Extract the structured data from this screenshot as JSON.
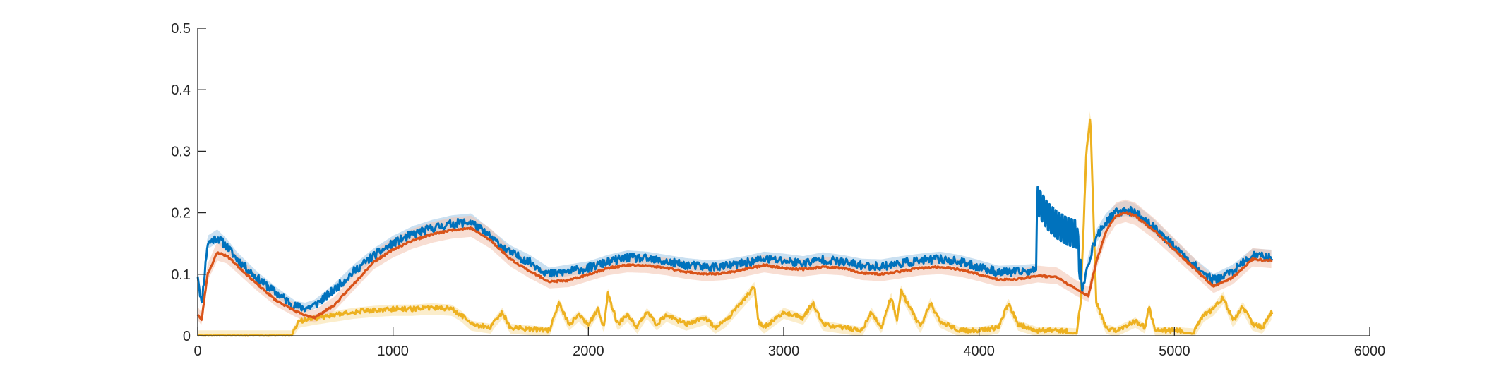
{
  "chart_data": {
    "type": "line",
    "title": "",
    "xlabel": "",
    "ylabel": "",
    "xlim": [
      0,
      6000
    ],
    "ylim": [
      0,
      0.5
    ],
    "xticks": [
      0,
      1000,
      2000,
      3000,
      4000,
      5000,
      6000
    ],
    "yticks": [
      0,
      0.1,
      0.2,
      0.3,
      0.4,
      0.5
    ],
    "xtick_labels": [
      "0",
      "1000",
      "2000",
      "3000",
      "4000",
      "5000",
      "6000"
    ],
    "ytick_labels": [
      "0",
      "0.1",
      "0.2",
      "0.3",
      "0.4",
      "0.5"
    ],
    "grid": false,
    "legend": "none",
    "series": [
      {
        "color": "#0072BD",
        "band_color": "#9FC7E6",
        "x": [
          0,
          20,
          50,
          100,
          150,
          200,
          300,
          400,
          500,
          550,
          600,
          700,
          800,
          900,
          1000,
          1100,
          1200,
          1300,
          1400,
          1500,
          1600,
          1700,
          1800,
          1900,
          2000,
          2100,
          2200,
          2300,
          2400,
          2500,
          2600,
          2700,
          2800,
          2900,
          3000,
          3100,
          3200,
          3300,
          3400,
          3500,
          3600,
          3700,
          3800,
          3900,
          4000,
          4100,
          4200,
          4290,
          4300,
          4350,
          4400,
          4450,
          4500,
          4530,
          4560,
          4600,
          4650,
          4700,
          4750,
          4800,
          4900,
          5000,
          5100,
          5200,
          5300,
          5400,
          5500
        ],
        "values": [
          0.1,
          0.05,
          0.15,
          0.16,
          0.145,
          0.125,
          0.095,
          0.07,
          0.048,
          0.045,
          0.05,
          0.075,
          0.105,
          0.13,
          0.15,
          0.165,
          0.175,
          0.182,
          0.185,
          0.16,
          0.135,
          0.12,
          0.1,
          0.105,
          0.11,
          0.12,
          0.127,
          0.125,
          0.12,
          0.115,
          0.112,
          0.113,
          0.118,
          0.125,
          0.122,
          0.118,
          0.124,
          0.12,
          0.114,
          0.113,
          0.118,
          0.122,
          0.125,
          0.12,
          0.112,
          0.103,
          0.104,
          0.106,
          0.22,
          0.195,
          0.18,
          0.17,
          0.165,
          0.07,
          0.12,
          0.16,
          0.185,
          0.2,
          0.205,
          0.2,
          0.175,
          0.145,
          0.115,
          0.09,
          0.105,
          0.13,
          0.128
        ],
        "noise_seed": 11,
        "noise_amp": 0.007,
        "band_halfwidth": 0.012
      },
      {
        "color": "#D95319",
        "band_color": "#F2C3AE",
        "x": [
          0,
          20,
          50,
          100,
          150,
          200,
          300,
          400,
          500,
          550,
          600,
          700,
          800,
          900,
          1000,
          1100,
          1200,
          1300,
          1400,
          1500,
          1600,
          1700,
          1800,
          1900,
          2000,
          2100,
          2200,
          2300,
          2400,
          2500,
          2600,
          2700,
          2800,
          2900,
          3000,
          3100,
          3200,
          3300,
          3400,
          3500,
          3600,
          3700,
          3800,
          3900,
          4000,
          4100,
          4200,
          4300,
          4400,
          4500,
          4560,
          4600,
          4650,
          4700,
          4750,
          4800,
          4900,
          5000,
          5100,
          5200,
          5300,
          5400,
          5500
        ],
        "values": [
          0.035,
          0.025,
          0.1,
          0.135,
          0.13,
          0.115,
          0.085,
          0.058,
          0.04,
          0.033,
          0.03,
          0.05,
          0.085,
          0.12,
          0.14,
          0.155,
          0.165,
          0.172,
          0.175,
          0.155,
          0.125,
          0.105,
          0.088,
          0.09,
          0.1,
          0.11,
          0.115,
          0.114,
          0.11,
          0.104,
          0.1,
          0.102,
          0.108,
          0.115,
          0.11,
          0.108,
          0.112,
          0.11,
          0.102,
          0.1,
          0.105,
          0.11,
          0.112,
          0.108,
          0.1,
          0.091,
          0.092,
          0.098,
          0.095,
          0.075,
          0.065,
          0.12,
          0.17,
          0.195,
          0.2,
          0.195,
          0.17,
          0.14,
          0.11,
          0.08,
          0.095,
          0.125,
          0.122
        ],
        "noise_seed": 23,
        "noise_amp": 0.0015,
        "band_halfwidth": 0.018
      },
      {
        "color": "#EDB120",
        "band_color": "#F8DFA0",
        "x": [
          0,
          480,
          500,
          520,
          600,
          700,
          800,
          900,
          1000,
          1100,
          1200,
          1300,
          1350,
          1400,
          1500,
          1520,
          1560,
          1600,
          1800,
          1850,
          1900,
          1950,
          2000,
          2050,
          2080,
          2100,
          2150,
          2200,
          2250,
          2300,
          2350,
          2400,
          2500,
          2600,
          2650,
          2700,
          2850,
          2870,
          2900,
          3000,
          3100,
          3150,
          3200,
          3400,
          3450,
          3500,
          3550,
          3580,
          3600,
          3700,
          3750,
          3800,
          3900,
          4000,
          4100,
          4150,
          4200,
          4300,
          4400,
          4500,
          4520,
          4550,
          4570,
          4600,
          4650,
          4700,
          4800,
          4850,
          4870,
          4900,
          5000,
          5100,
          5150,
          5200,
          5250,
          5300,
          5350,
          5400,
          5450,
          5500
        ],
        "values": [
          0.0,
          0.0,
          0.01,
          0.02,
          0.025,
          0.03,
          0.035,
          0.038,
          0.04,
          0.04,
          0.042,
          0.04,
          0.03,
          0.015,
          0.01,
          0.02,
          0.035,
          0.01,
          0.005,
          0.05,
          0.015,
          0.03,
          0.015,
          0.04,
          0.01,
          0.065,
          0.015,
          0.03,
          0.01,
          0.035,
          0.015,
          0.03,
          0.015,
          0.025,
          0.01,
          0.02,
          0.075,
          0.02,
          0.01,
          0.035,
          0.025,
          0.05,
          0.015,
          0.005,
          0.035,
          0.01,
          0.06,
          0.02,
          0.07,
          0.01,
          0.05,
          0.02,
          0.005,
          0.005,
          0.01,
          0.05,
          0.015,
          0.005,
          0.005,
          0.003,
          0.05,
          0.3,
          0.35,
          0.05,
          0.01,
          0.005,
          0.02,
          0.01,
          0.045,
          0.005,
          0.005,
          0.003,
          0.03,
          0.04,
          0.06,
          0.02,
          0.045,
          0.015,
          0.01,
          0.035
        ],
        "noise_seed": 37,
        "noise_amp": 0.005,
        "band_halfwidth": 0.015
      }
    ]
  }
}
